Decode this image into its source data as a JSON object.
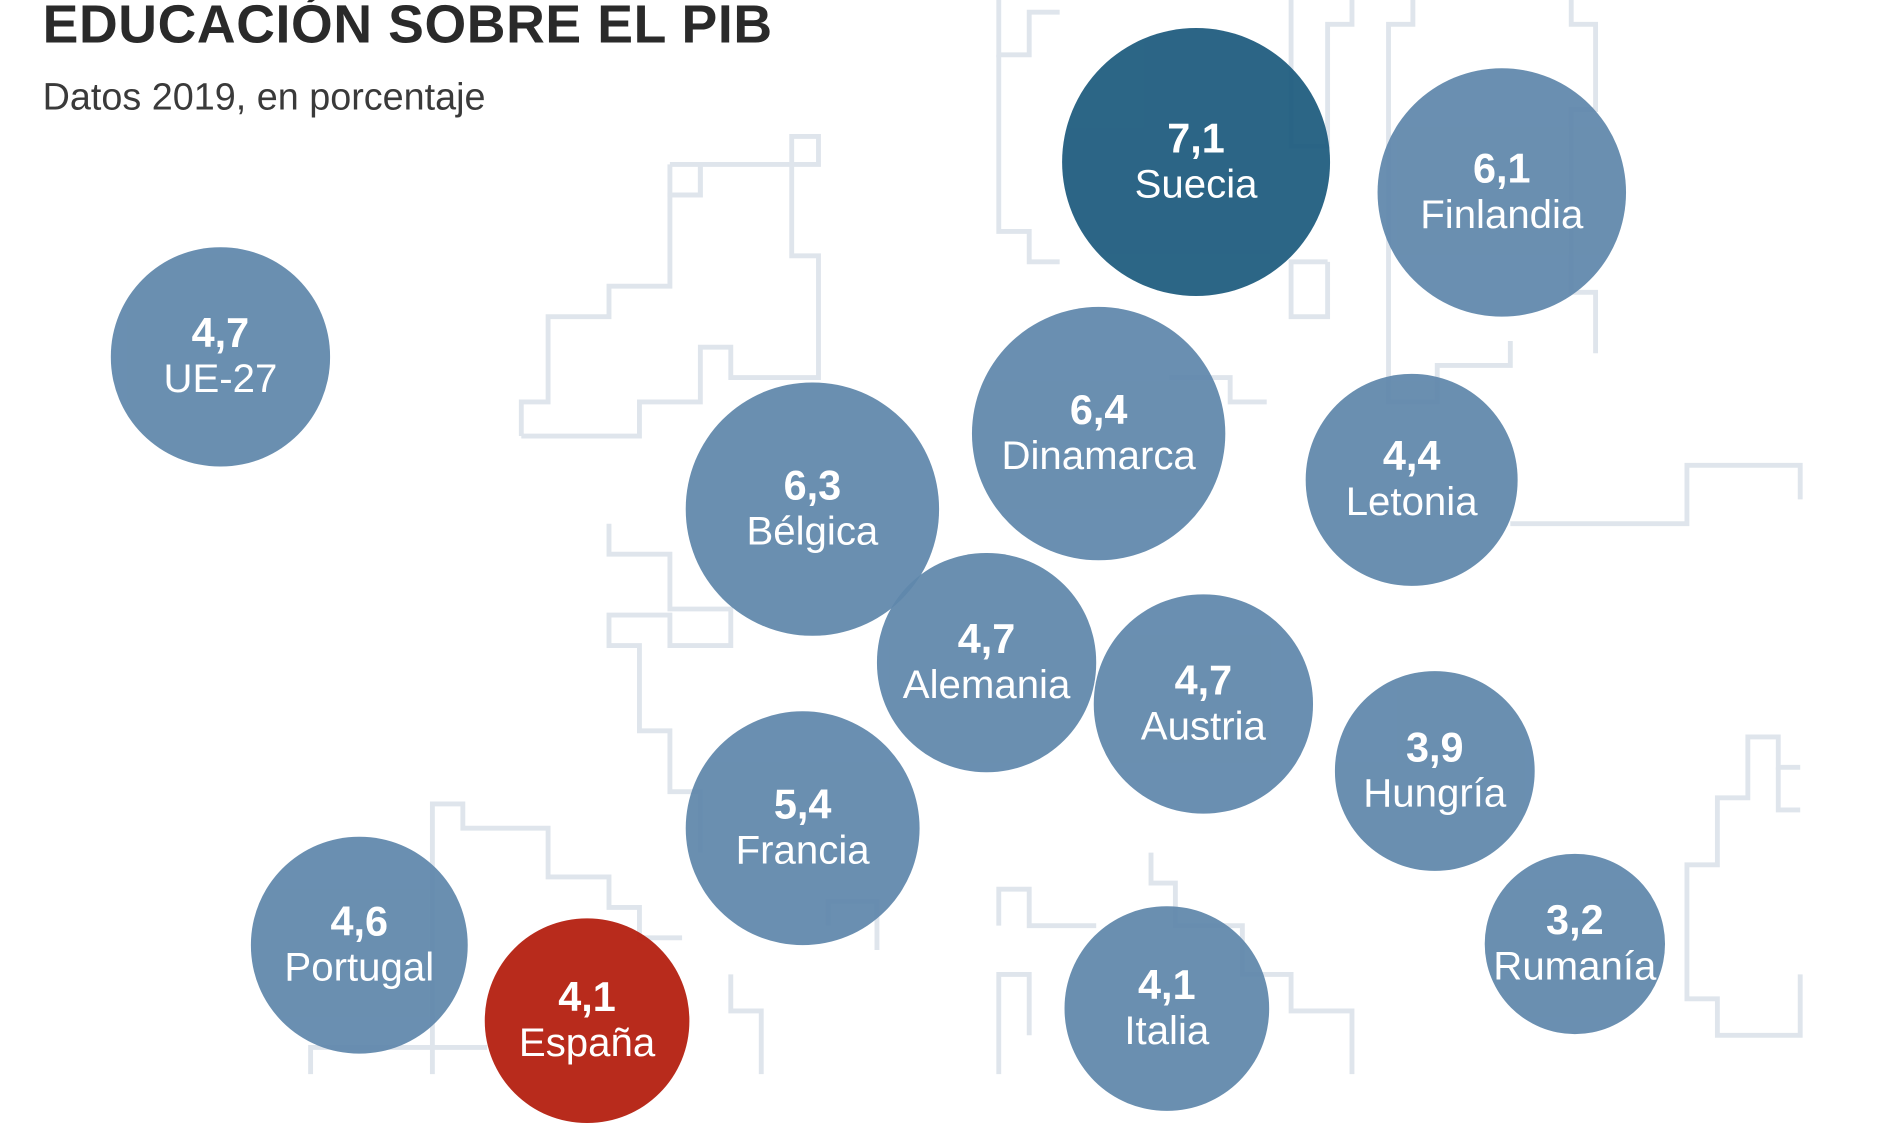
{
  "chart_data": {
    "type": "bubble-map",
    "title": "EDUCACIÓN SOBRE EL PIB",
    "subtitle": "Datos 2019, en porcentaje",
    "colors": {
      "default": "#5f87ab",
      "highest": "#1c5a7d",
      "highlight": "#b31b0b",
      "map_lines": "#dfe5ec"
    },
    "points": [
      {
        "label": "UE-27",
        "value": "4,7",
        "num": 4.7
      },
      {
        "label": "Suecia",
        "value": "7,1",
        "num": 7.1
      },
      {
        "label": "Finlandia",
        "value": "6,1",
        "num": 6.1
      },
      {
        "label": "Dinamarca",
        "value": "6,4",
        "num": 6.4
      },
      {
        "label": "Letonia",
        "value": "4,4",
        "num": 4.4
      },
      {
        "label": "Bélgica",
        "value": "6,3",
        "num": 6.3
      },
      {
        "label": "Alemania",
        "value": "4,7",
        "num": 4.7
      },
      {
        "label": "Austria",
        "value": "4,7",
        "num": 4.7
      },
      {
        "label": "Hungría",
        "value": "3,9",
        "num": 3.9
      },
      {
        "label": "Francia",
        "value": "5,4",
        "num": 5.4
      },
      {
        "label": "Portugal",
        "value": "4,6",
        "num": 4.6
      },
      {
        "label": "España",
        "value": "4,1",
        "num": 4.1
      },
      {
        "label": "Italia",
        "value": "4,1",
        "num": 4.1
      },
      {
        "label": "Rumanía",
        "value": "3,2",
        "num": 3.2
      }
    ]
  }
}
